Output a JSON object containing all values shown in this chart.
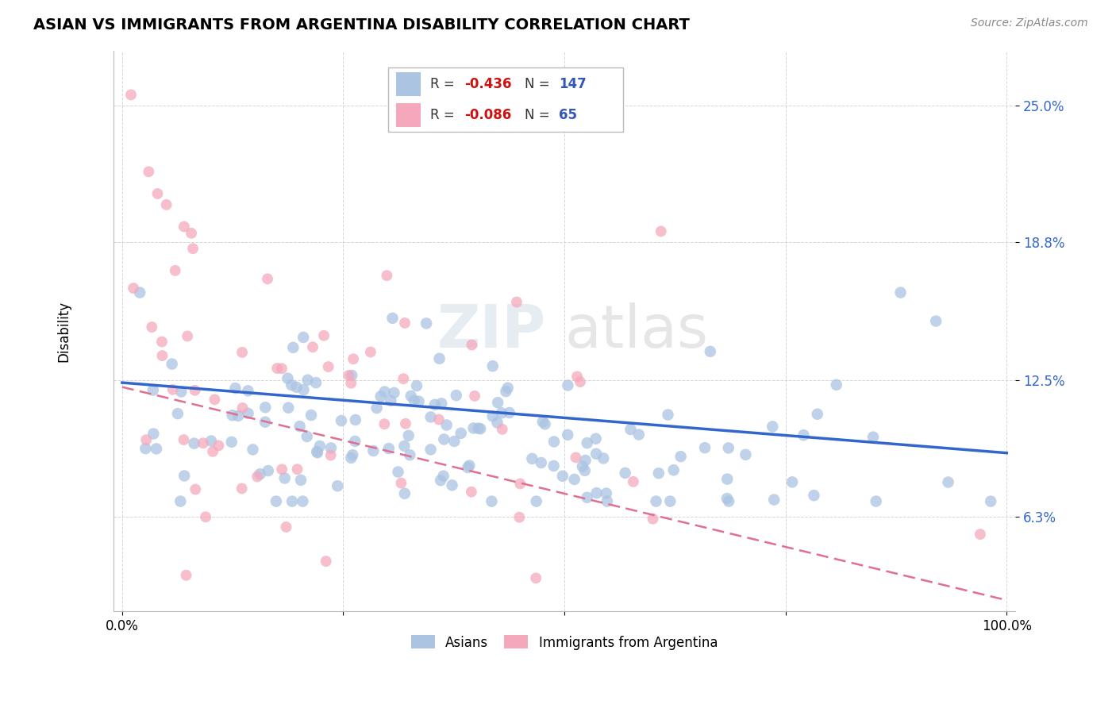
{
  "title": "ASIAN VS IMMIGRANTS FROM ARGENTINA DISABILITY CORRELATION CHART",
  "source": "Source: ZipAtlas.com",
  "ylabel": "Disability",
  "watermark": "ZIPatlas",
  "watermark_zip": "ZIP",
  "watermark_atlas": "atlas",
  "blue_R": -0.436,
  "blue_N": 147,
  "pink_R": -0.086,
  "pink_N": 65,
  "blue_color": "#aac4e2",
  "pink_color": "#f5a8bc",
  "blue_line_color": "#3366cc",
  "pink_line_color": "#e07090",
  "legend_label_blue": "Asians",
  "legend_label_pink": "Immigrants from Argentina",
  "ytick_vals": [
    6.3,
    12.5,
    18.8,
    25.0
  ],
  "ytick_labels": [
    "6.3%",
    "12.5%",
    "18.8%",
    "25.0%"
  ],
  "ylim_low": 2.0,
  "ylim_high": 27.5,
  "xlim_low": -0.01,
  "xlim_high": 1.01,
  "blue_line_x0": 0.0,
  "blue_line_x1": 1.0,
  "blue_line_y0": 12.4,
  "blue_line_y1": 9.2,
  "pink_line_x0": 0.0,
  "pink_line_x1": 1.0,
  "pink_line_y0": 12.2,
  "pink_line_y1": 2.5
}
